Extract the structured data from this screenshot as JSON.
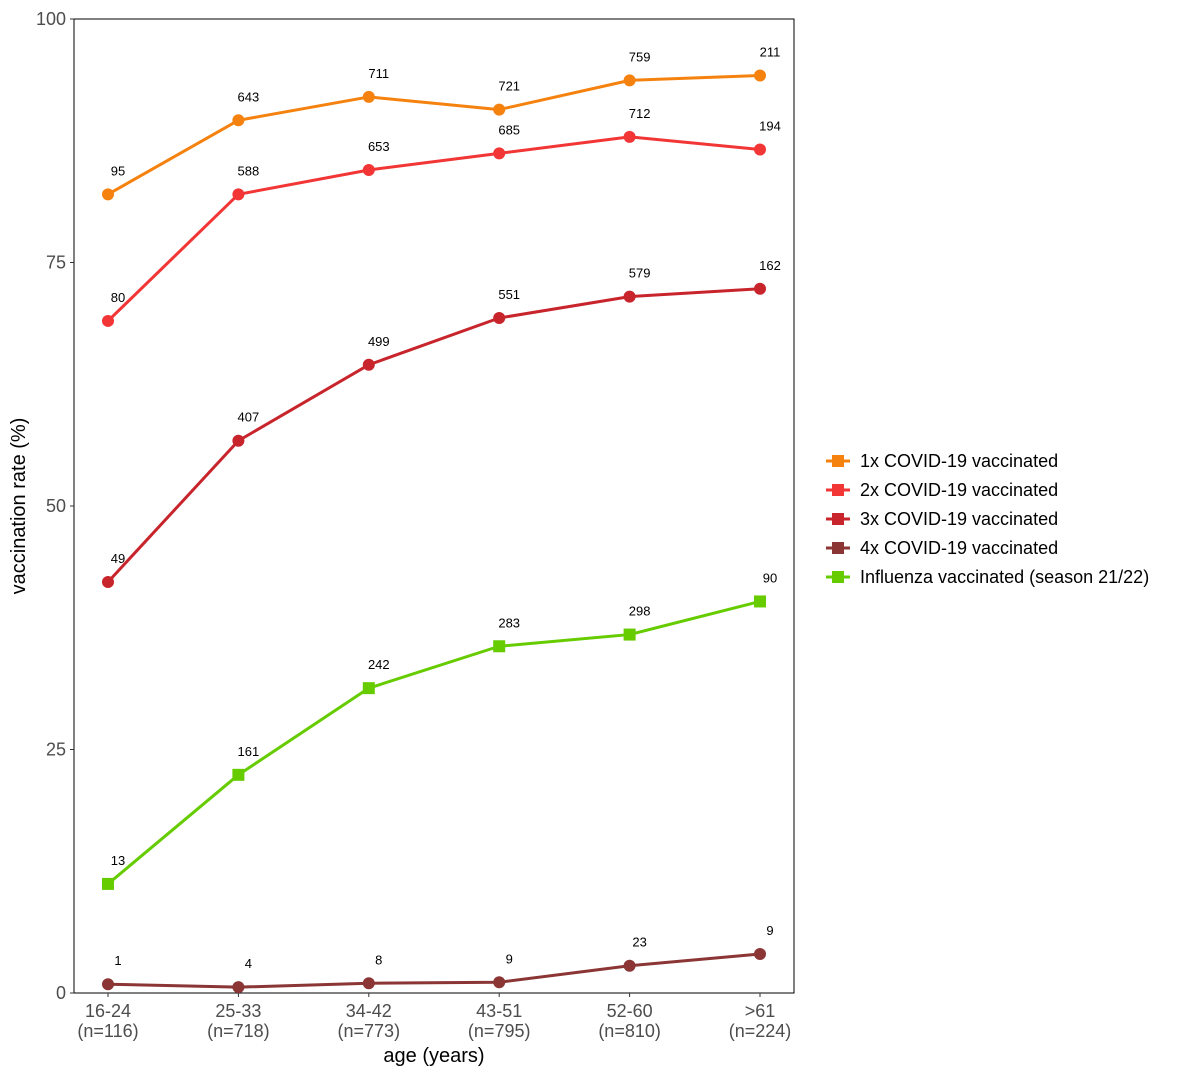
{
  "chart_data": {
    "type": "line",
    "xlabel": "age (years)",
    "ylabel": "vaccination rate (%)",
    "ylim": [
      0,
      100
    ],
    "yticks": [
      "0",
      "25",
      "50",
      "75",
      "100"
    ],
    "categories": [
      {
        "range": "16-24",
        "n": "(n=116)"
      },
      {
        "range": "25-33",
        "n": "(n=718)"
      },
      {
        "range": "34-42",
        "n": "(n=773)"
      },
      {
        "range": "43-51",
        "n": "(n=795)"
      },
      {
        "range": "52-60",
        "n": "(n=810)"
      },
      {
        "range": ">61",
        "n": "(n=224)"
      }
    ],
    "series": [
      {
        "name": "1x COVID-19 vaccinated",
        "color": "#f5820f",
        "marker": "circle",
        "values": [
          82.0,
          89.6,
          92.0,
          90.7,
          93.7,
          94.2
        ],
        "labels": [
          "95",
          "643",
          "711",
          "721",
          "759",
          "211"
        ]
      },
      {
        "name": "2x COVID-19 vaccinated",
        "color": "#f23535",
        "marker": "circle",
        "values": [
          69.0,
          82.0,
          84.5,
          86.2,
          87.9,
          86.6
        ],
        "labels": [
          "80",
          "588",
          "653",
          "685",
          "712",
          "194"
        ]
      },
      {
        "name": "3x COVID-19 vaccinated",
        "color": "#c8242b",
        "marker": "circle",
        "values": [
          42.2,
          56.7,
          64.5,
          69.3,
          71.5,
          72.3
        ],
        "labels": [
          "49",
          "407",
          "499",
          "551",
          "579",
          "162"
        ]
      },
      {
        "name": "4x COVID-19 vaccinated",
        "color": "#8b3535",
        "marker": "circle",
        "values": [
          0.9,
          0.6,
          1.0,
          1.1,
          2.8,
          4.0
        ],
        "labels": [
          "1",
          "4",
          "8",
          "9",
          "23",
          "9"
        ]
      },
      {
        "name": "Influenza vaccinated (season 21/22)",
        "color": "#66cc00",
        "marker": "square",
        "values": [
          11.2,
          22.4,
          31.3,
          35.6,
          36.8,
          40.2
        ],
        "labels": [
          "13",
          "161",
          "242",
          "283",
          "298",
          "90"
        ]
      }
    ]
  }
}
